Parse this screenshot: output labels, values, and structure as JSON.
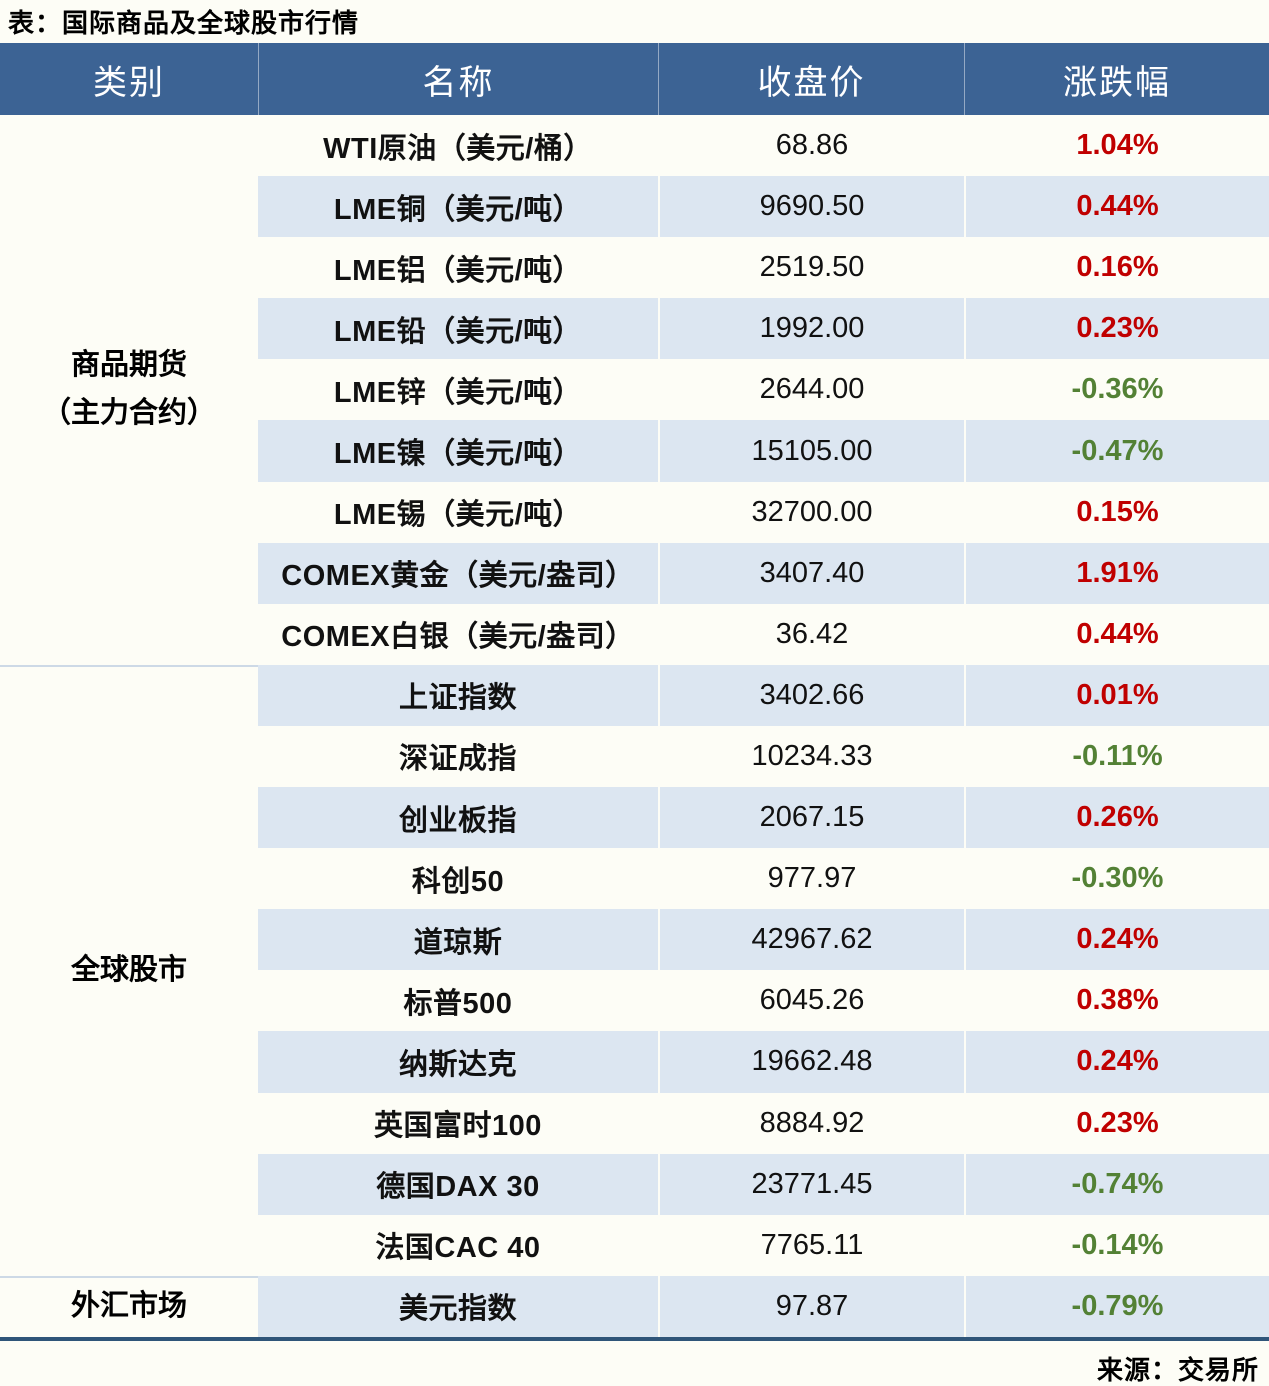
{
  "title": "表：国际商品及全球股市行情",
  "source": "来源：交易所",
  "colors": {
    "header_bg": "#3c6394",
    "header_text": "#ffffff",
    "row_alt_bg": "#dce6f1",
    "up_red": "#c00000",
    "down_green": "#538135",
    "bottom_border": "#2f5579",
    "section_divider": "#cdd9e6",
    "page_bg": "#fdfdf6"
  },
  "table": {
    "headers": [
      "类别",
      "名称",
      "收盘价",
      "涨跌幅"
    ],
    "sections": [
      {
        "category_lines": [
          "商品期货",
          "（主力合约）"
        ],
        "rows": [
          {
            "name": "WTI原油（美元/桶）",
            "close": "68.86",
            "change": "1.04%",
            "direction": "up"
          },
          {
            "name": "LME铜（美元/吨）",
            "close": "9690.50",
            "change": "0.44%",
            "direction": "up"
          },
          {
            "name": "LME铝（美元/吨）",
            "close": "2519.50",
            "change": "0.16%",
            "direction": "up"
          },
          {
            "name": "LME铅（美元/吨）",
            "close": "1992.00",
            "change": "0.23%",
            "direction": "up"
          },
          {
            "name": "LME锌（美元/吨）",
            "close": "2644.00",
            "change": "-0.36%",
            "direction": "down"
          },
          {
            "name": "LME镍（美元/吨）",
            "close": "15105.00",
            "change": "-0.47%",
            "direction": "down"
          },
          {
            "name": "LME锡（美元/吨）",
            "close": "32700.00",
            "change": "0.15%",
            "direction": "up"
          },
          {
            "name": "COMEX黄金（美元/盎司）",
            "close": "3407.40",
            "change": "1.91%",
            "direction": "up"
          },
          {
            "name": "COMEX白银（美元/盎司）",
            "close": "36.42",
            "change": "0.44%",
            "direction": "up"
          }
        ]
      },
      {
        "category_lines": [
          "全球股市"
        ],
        "rows": [
          {
            "name": "上证指数",
            "close": "3402.66",
            "change": "0.01%",
            "direction": "up"
          },
          {
            "name": "深证成指",
            "close": "10234.33",
            "change": "-0.11%",
            "direction": "down"
          },
          {
            "name": "创业板指",
            "close": "2067.15",
            "change": "0.26%",
            "direction": "up"
          },
          {
            "name": "科创50",
            "close": "977.97",
            "change": "-0.30%",
            "direction": "down"
          },
          {
            "name": "道琼斯",
            "close": "42967.62",
            "change": "0.24%",
            "direction": "up"
          },
          {
            "name": "标普500",
            "close": "6045.26",
            "change": "0.38%",
            "direction": "up"
          },
          {
            "name": "纳斯达克",
            "close": "19662.48",
            "change": "0.24%",
            "direction": "up"
          },
          {
            "name": "英国富时100",
            "close": "8884.92",
            "change": "0.23%",
            "direction": "up"
          },
          {
            "name": "德国DAX 30",
            "close": "23771.45",
            "change": "-0.74%",
            "direction": "down"
          },
          {
            "name": "法国CAC 40",
            "close": "7765.11",
            "change": "-0.14%",
            "direction": "down"
          }
        ]
      },
      {
        "category_lines": [
          "外汇市场"
        ],
        "rows": [
          {
            "name": "美元指数",
            "close": "97.87",
            "change": "-0.79%",
            "direction": "down"
          }
        ]
      }
    ]
  }
}
